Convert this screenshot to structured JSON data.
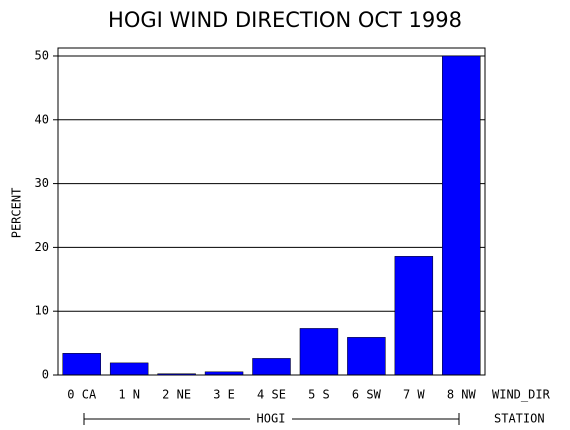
{
  "chart_data": {
    "type": "bar",
    "title": "HOGI WIND DIRECTION OCT 1998",
    "y_label": "PERCENT",
    "x_label": "WIND_DIR",
    "group_label": "HOGI",
    "group_axis_label": "STATION",
    "categories": [
      "0 CA",
      "1 N",
      "2 NE",
      "3 E",
      "4 SE",
      "5 S",
      "6 SW",
      "7 W",
      "8 NW"
    ],
    "values": [
      3.4,
      1.9,
      0.2,
      0.5,
      2.6,
      7.3,
      5.9,
      18.6,
      50
    ],
    "color": "#0000ff",
    "ylim": [
      0,
      51.25
    ],
    "yticks": [
      0,
      10,
      20,
      30,
      40,
      50
    ],
    "grid": true
  }
}
